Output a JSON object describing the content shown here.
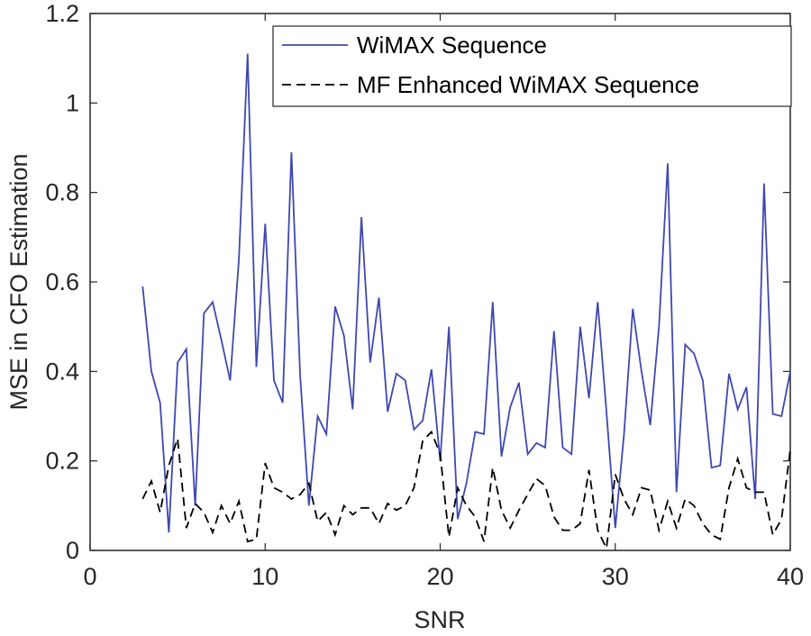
{
  "chart_data": {
    "type": "line",
    "title": "",
    "xlabel": "SNR",
    "ylabel": "MSE in CFO Estimation",
    "xlim": [
      0,
      40
    ],
    "ylim": [
      0,
      1.2
    ],
    "xticks": [
      0,
      10,
      20,
      30,
      40
    ],
    "yticks": [
      0,
      0.2,
      0.4,
      0.6,
      0.8,
      1,
      1.2
    ],
    "xtick_labels": [
      "0",
      "10",
      "20",
      "30",
      "40"
    ],
    "ytick_labels": [
      "0",
      "0.2",
      "0.4",
      "0.6",
      "0.8",
      "1",
      "1.2"
    ],
    "legend_position": "top-right",
    "x": [
      3,
      3.5,
      4,
      4.5,
      5,
      5.5,
      6,
      6.5,
      7,
      7.5,
      8,
      8.5,
      9,
      9.5,
      10,
      10.5,
      11,
      11.5,
      12,
      12.5,
      13,
      13.5,
      14,
      14.5,
      15,
      15.5,
      16,
      16.5,
      17,
      17.5,
      18,
      18.5,
      19,
      19.5,
      20,
      20.5,
      21,
      21.5,
      22,
      22.5,
      23,
      23.5,
      24,
      24.5,
      25,
      25.5,
      26,
      26.5,
      27,
      27.5,
      28,
      28.5,
      29,
      29.5,
      30,
      30.5,
      31,
      31.5,
      32,
      32.5,
      33,
      33.5,
      34,
      34.5,
      35,
      35.5,
      36,
      36.5,
      37,
      37.5,
      38,
      38.5,
      39,
      39.5,
      40
    ],
    "series": [
      {
        "name": "WiMAX Sequence",
        "color": "#3f48b0",
        "style": "solid",
        "values": [
          0.59,
          0.4,
          0.33,
          0.04,
          0.42,
          0.45,
          0.1,
          0.53,
          0.555,
          0.47,
          0.38,
          0.65,
          1.11,
          0.41,
          0.73,
          0.38,
          0.33,
          0.89,
          0.39,
          0.1,
          0.3,
          0.26,
          0.545,
          0.48,
          0.315,
          0.745,
          0.42,
          0.565,
          0.31,
          0.395,
          0.38,
          0.27,
          0.29,
          0.405,
          0.2,
          0.5,
          0.07,
          0.15,
          0.265,
          0.26,
          0.555,
          0.21,
          0.32,
          0.375,
          0.215,
          0.24,
          0.23,
          0.49,
          0.23,
          0.215,
          0.5,
          0.34,
          0.555,
          0.31,
          0.05,
          0.26,
          0.54,
          0.4,
          0.28,
          0.5,
          0.865,
          0.13,
          0.46,
          0.44,
          0.38,
          0.185,
          0.19,
          0.395,
          0.315,
          0.365,
          0.115,
          0.82,
          0.305,
          0.3,
          0.4
        ]
      },
      {
        "name": "MF Enhanced WiMAX Sequence",
        "color": "#000000",
        "style": "dashed",
        "values": [
          0.115,
          0.155,
          0.085,
          0.19,
          0.25,
          0.05,
          0.105,
          0.085,
          0.04,
          0.1,
          0.06,
          0.11,
          0.02,
          0.025,
          0.195,
          0.14,
          0.13,
          0.115,
          0.125,
          0.15,
          0.065,
          0.085,
          0.035,
          0.1,
          0.08,
          0.095,
          0.095,
          0.06,
          0.105,
          0.09,
          0.1,
          0.14,
          0.245,
          0.265,
          0.215,
          0.03,
          0.14,
          0.1,
          0.075,
          0.02,
          0.185,
          0.09,
          0.05,
          0.09,
          0.125,
          0.16,
          0.145,
          0.075,
          0.045,
          0.045,
          0.06,
          0.18,
          0.045,
          0.005,
          0.17,
          0.115,
          0.08,
          0.14,
          0.135,
          0.045,
          0.11,
          0.05,
          0.115,
          0.1,
          0.06,
          0.035,
          0.025,
          0.14,
          0.205,
          0.14,
          0.13,
          0.13,
          0.035,
          0.07,
          0.225
        ]
      }
    ]
  }
}
